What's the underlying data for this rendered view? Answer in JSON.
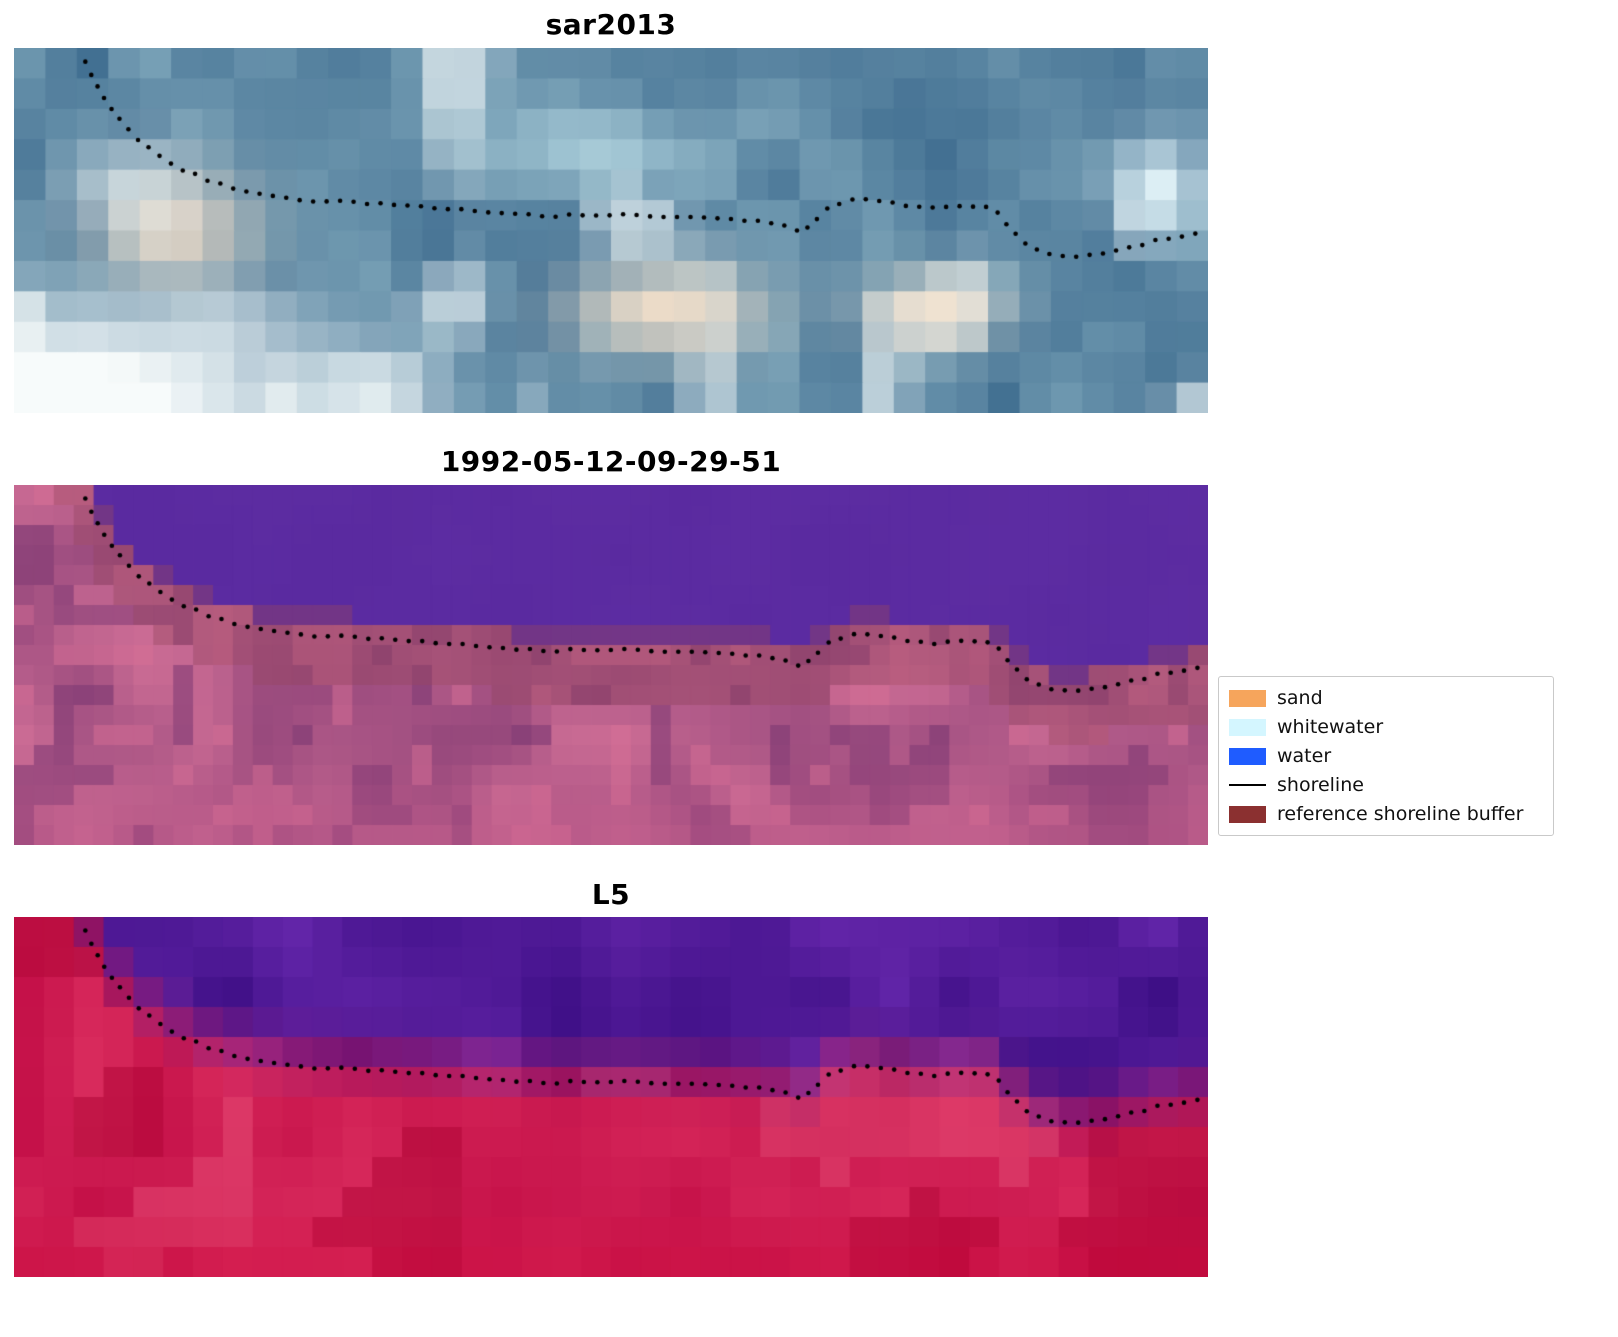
{
  "chart_data": {
    "type": "scatter",
    "background": "#ffffff",
    "axes_visible": false,
    "grid": false,
    "panels": [
      {
        "title": "sar2013"
      },
      {
        "title": "1992-05-12-09-29-51"
      },
      {
        "title": "L5"
      }
    ],
    "legend": {
      "position": "right",
      "entries": [
        {
          "label": "sand",
          "color": "#f6a55c",
          "kind": "patch"
        },
        {
          "label": "whitewater",
          "color": "#d4f6ff",
          "kind": "patch"
        },
        {
          "label": "water",
          "color": "#1f5cff",
          "kind": "patch"
        },
        {
          "label": "shoreline",
          "color": "#000000",
          "kind": "line"
        },
        {
          "label": "reference shoreline buffer",
          "color": "#8b3030",
          "kind": "patch"
        }
      ]
    },
    "palette": {
      "sar_deep_blue": "#3f6d90",
      "sar_light_blue": "#7ea6ba",
      "sar_cream": "#f0ddc8",
      "sar_white": "#f7fbfb",
      "classified_water_purple": "#5a2aa0",
      "classified_land_pink_dark": "#96487c",
      "classified_land_pink_light": "#ce6e96",
      "buffer_overlay": "#96465f",
      "l5_purple_dark": "#3c0e84",
      "l5_purple_light": "#6426aa",
      "l5_red_dark": "#c41048",
      "l5_red_light": "#da2c5e",
      "shoreline_dot": "#000000"
    },
    "shoreline_points_norm": [
      [
        0.059,
        0.033
      ],
      [
        0.067,
        0.086
      ],
      [
        0.076,
        0.14
      ],
      [
        0.087,
        0.192
      ],
      [
        0.1,
        0.24
      ],
      [
        0.117,
        0.285
      ],
      [
        0.137,
        0.326
      ],
      [
        0.16,
        0.36
      ],
      [
        0.185,
        0.386
      ],
      [
        0.212,
        0.405
      ],
      [
        0.24,
        0.416
      ],
      [
        0.27,
        0.421
      ],
      [
        0.3,
        0.426
      ],
      [
        0.33,
        0.432
      ],
      [
        0.36,
        0.438
      ],
      [
        0.39,
        0.447
      ],
      [
        0.42,
        0.455
      ],
      [
        0.45,
        0.46
      ],
      [
        0.48,
        0.457
      ],
      [
        0.51,
        0.456
      ],
      [
        0.54,
        0.46
      ],
      [
        0.57,
        0.465
      ],
      [
        0.6,
        0.47
      ],
      [
        0.63,
        0.477
      ],
      [
        0.65,
        0.493
      ],
      [
        0.66,
        0.508
      ],
      [
        0.668,
        0.48
      ],
      [
        0.678,
        0.448
      ],
      [
        0.692,
        0.424
      ],
      [
        0.71,
        0.414
      ],
      [
        0.73,
        0.42
      ],
      [
        0.75,
        0.432
      ],
      [
        0.77,
        0.44
      ],
      [
        0.79,
        0.436
      ],
      [
        0.81,
        0.43
      ],
      [
        0.822,
        0.446
      ],
      [
        0.835,
        0.496
      ],
      [
        0.85,
        0.543
      ],
      [
        0.868,
        0.567
      ],
      [
        0.888,
        0.573
      ],
      [
        0.91,
        0.565
      ],
      [
        0.935,
        0.545
      ],
      [
        0.96,
        0.525
      ],
      [
        0.98,
        0.513
      ],
      [
        0.997,
        0.507
      ]
    ]
  }
}
